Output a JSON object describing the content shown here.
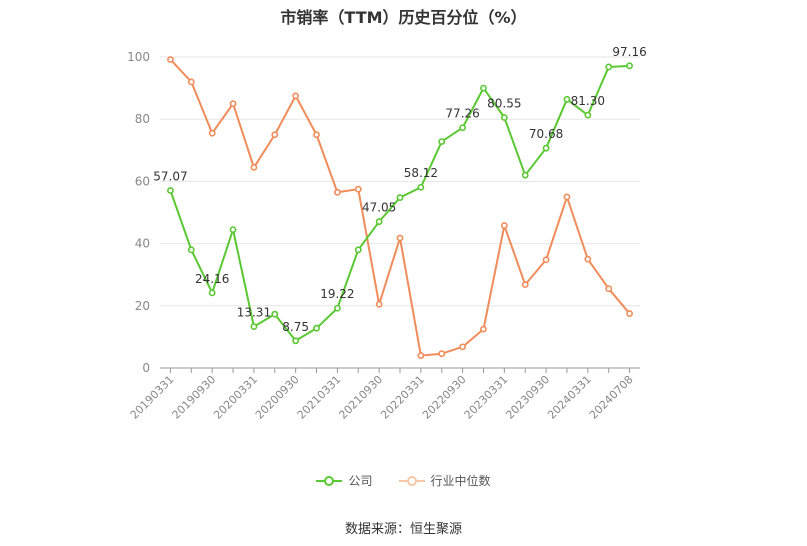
{
  "chart_data": {
    "type": "line",
    "title": "市销率（TTM）历史百分位（%）",
    "ylim": [
      0,
      100
    ],
    "yticks": [
      0,
      20,
      40,
      60,
      80,
      100
    ],
    "grid": true,
    "legend_position": "bottom",
    "categories": [
      "20190331",
      "",
      "20190930",
      "",
      "20200331",
      "",
      "20200930",
      "",
      "20210331",
      "",
      "20210930",
      "",
      "20220331",
      "",
      "20220930",
      "",
      "20230331",
      "",
      "20230930",
      "",
      "20240331",
      "",
      "20240708"
    ],
    "series": [
      {
        "name": "公司",
        "color": "#5ac832",
        "values": [
          57.07,
          38.0,
          24.16,
          44.5,
          13.31,
          17.3,
          8.75,
          12.8,
          19.22,
          38.0,
          47.05,
          54.8,
          58.12,
          72.8,
          77.26,
          90.0,
          80.55,
          62.0,
          70.68,
          86.4,
          81.3,
          96.8,
          97.16
        ],
        "labels": [
          "57.07",
          "",
          "24.16",
          "",
          "13.31",
          "",
          "8.75",
          "",
          "19.22",
          "",
          "47.05",
          "",
          "58.12",
          "",
          "77.26",
          "",
          "80.55",
          "",
          "70.68",
          "",
          "81.30",
          "",
          "97.16"
        ]
      },
      {
        "name": "行业中位数",
        "color": "#f08c5a",
        "values": [
          99.2,
          92.0,
          75.5,
          85.0,
          64.5,
          75.0,
          87.5,
          75.0,
          56.5,
          57.5,
          20.5,
          41.8,
          4.0,
          4.6,
          6.8,
          12.5,
          45.8,
          26.8,
          34.8,
          55.0,
          35.0,
          25.5,
          17.5
        ]
      }
    ]
  },
  "footer": {
    "source": "数据来源：恒生聚源"
  }
}
